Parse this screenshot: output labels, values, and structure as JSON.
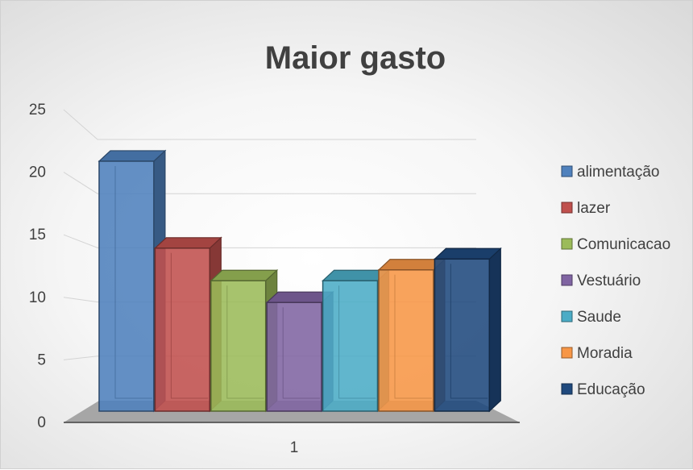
{
  "chart_data": {
    "type": "bar",
    "title": "Maior gasto",
    "xlabel": "",
    "ylabel": "",
    "categories": [
      "1"
    ],
    "ylim": [
      0,
      25
    ],
    "yticks": [
      0,
      5,
      10,
      15,
      20,
      25
    ],
    "grid": true,
    "style": "3d-column",
    "legend_position": "right",
    "series": [
      {
        "name": "alimentação",
        "values": [
          23
        ],
        "color": "#4F81BD"
      },
      {
        "name": "lazer",
        "values": [
          15
        ],
        "color": "#C0504D"
      },
      {
        "name": "Comunicacao",
        "values": [
          12
        ],
        "color": "#9BBB59"
      },
      {
        "name": "Vestuário",
        "values": [
          10
        ],
        "color": "#8064A2"
      },
      {
        "name": "Saude",
        "values": [
          12
        ],
        "color": "#4BACC6"
      },
      {
        "name": "Moradia",
        "values": [
          13
        ],
        "color": "#F79646"
      },
      {
        "name": "Educação",
        "values": [
          14
        ],
        "color": "#1F497D"
      }
    ]
  }
}
